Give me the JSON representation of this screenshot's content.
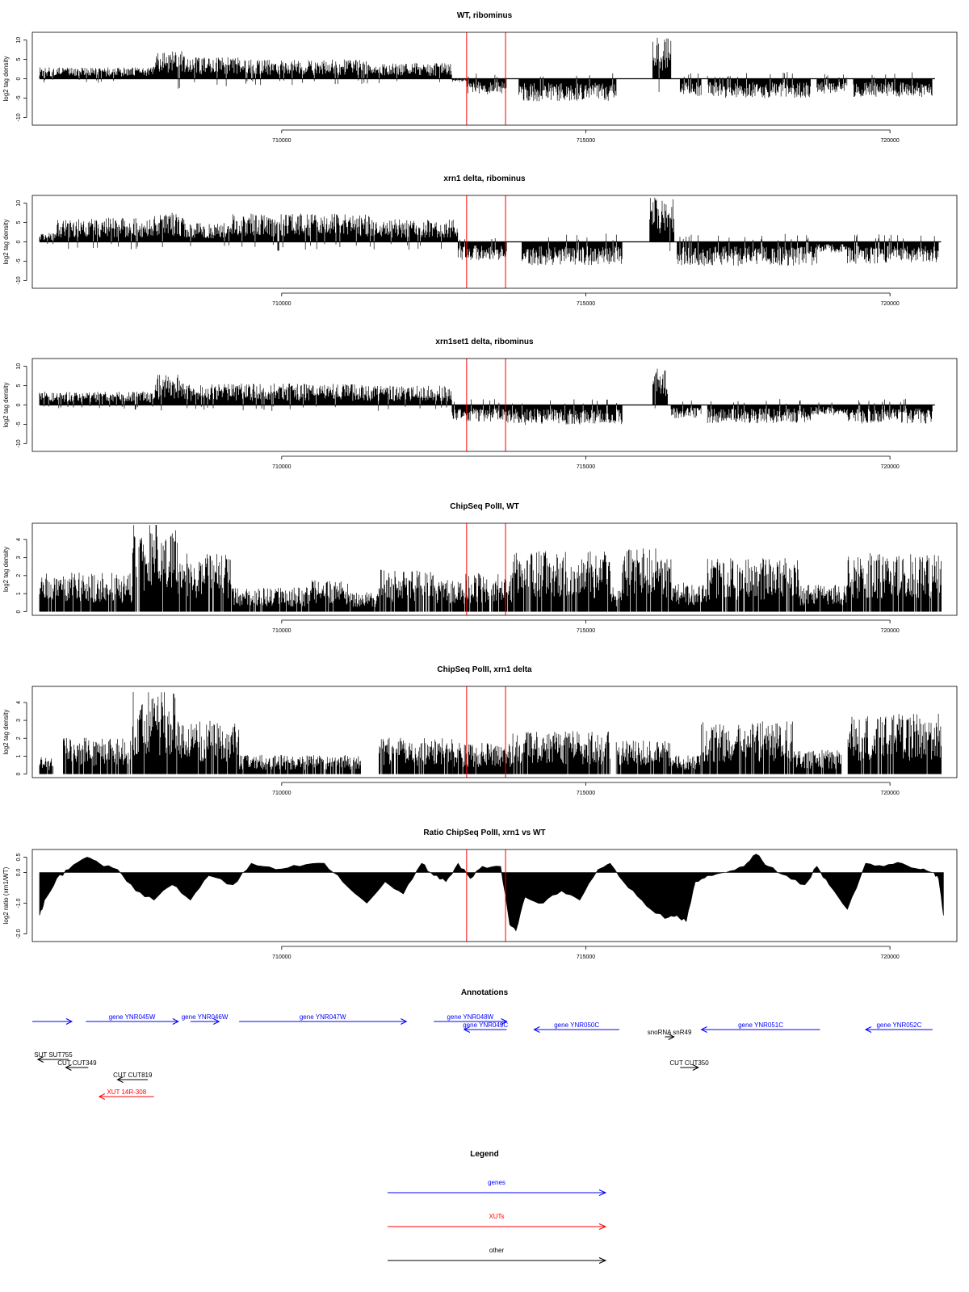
{
  "chart_data": [
    {
      "type": "bar",
      "kind": "signed",
      "title": "WT, ribominus",
      "ylabel": "log2 tag density",
      "ylim": [
        -12,
        12
      ],
      "yticks": [
        -10,
        -5,
        0,
        5,
        10
      ],
      "xlim": [
        705900,
        721100
      ],
      "xticks": [
        710000,
        715000,
        720000
      ],
      "markers": [
        713040,
        713680
      ],
      "segments": [
        {
          "x0": 706020,
          "x1": 707900,
          "v": 2.2
        },
        {
          "x0": 707900,
          "x1": 708400,
          "v": 5.4
        },
        {
          "x0": 708400,
          "x1": 709300,
          "v": 4.2
        },
        {
          "x0": 709300,
          "x1": 711400,
          "v": 3.7
        },
        {
          "x0": 711400,
          "x1": 712800,
          "v": 3.0
        },
        {
          "x0": 712800,
          "x1": 713050,
          "v": -0.6
        },
        {
          "x0": 713050,
          "x1": 713700,
          "v": -3.0
        },
        {
          "x0": 713900,
          "x1": 715500,
          "v": -4.3
        },
        {
          "x0": 716100,
          "x1": 716400,
          "v": 8.0
        },
        {
          "x0": 716550,
          "x1": 716900,
          "v": -3.4
        },
        {
          "x0": 717000,
          "x1": 718700,
          "v": -3.7
        },
        {
          "x0": 718800,
          "x1": 719300,
          "v": -2.8
        },
        {
          "x0": 719400,
          "x1": 720700,
          "v": -3.5
        }
      ]
    },
    {
      "type": "bar",
      "kind": "signed",
      "title": "xrn1 delta, ribominus",
      "ylabel": "log2 tag density",
      "ylim": [
        -12,
        12
      ],
      "yticks": [
        -10,
        -5,
        0,
        5,
        10
      ],
      "xlim": [
        705900,
        721100
      ],
      "xticks": [
        710000,
        715000,
        720000
      ],
      "markers": [
        713040,
        713680
      ],
      "segments": [
        {
          "x0": 706020,
          "x1": 706300,
          "v": 1.8
        },
        {
          "x0": 706300,
          "x1": 707900,
          "v": 4.6
        },
        {
          "x0": 707900,
          "x1": 708400,
          "v": 5.8
        },
        {
          "x0": 708400,
          "x1": 709200,
          "v": 3.6
        },
        {
          "x0": 709200,
          "x1": 711500,
          "v": 5.4
        },
        {
          "x0": 711500,
          "x1": 712900,
          "v": 4.3
        },
        {
          "x0": 712900,
          "x1": 713100,
          "v": -3.4
        },
        {
          "x0": 713100,
          "x1": 713700,
          "v": -3.6
        },
        {
          "x0": 713950,
          "x1": 715600,
          "v": -4.5
        },
        {
          "x0": 716050,
          "x1": 716450,
          "v": 8.5
        },
        {
          "x0": 716500,
          "x1": 718800,
          "v": -4.6
        },
        {
          "x0": 718800,
          "x1": 719300,
          "v": -2.0
        },
        {
          "x0": 719300,
          "x1": 720800,
          "v": -4.2
        }
      ]
    },
    {
      "type": "bar",
      "kind": "signed",
      "title": "xrn1set1 delta, ribominus",
      "ylabel": "log2 tag density",
      "ylim": [
        -12,
        12
      ],
      "yticks": [
        -10,
        -5,
        0,
        5,
        10
      ],
      "xlim": [
        705900,
        721100
      ],
      "xticks": [
        710000,
        715000,
        720000
      ],
      "markers": [
        713040,
        713680
      ],
      "segments": [
        {
          "x0": 706020,
          "x1": 707900,
          "v": 2.6
        },
        {
          "x0": 707900,
          "x1": 708400,
          "v": 5.8
        },
        {
          "x0": 708400,
          "x1": 711400,
          "v": 4.1
        },
        {
          "x0": 711400,
          "x1": 712800,
          "v": 3.7
        },
        {
          "x0": 712800,
          "x1": 713700,
          "v": -3.2
        },
        {
          "x0": 713700,
          "x1": 715600,
          "v": -3.8
        },
        {
          "x0": 716100,
          "x1": 716350,
          "v": 7.0
        },
        {
          "x0": 716400,
          "x1": 716900,
          "v": -2.6
        },
        {
          "x0": 717000,
          "x1": 718700,
          "v": -3.5
        },
        {
          "x0": 718700,
          "x1": 719300,
          "v": -2.0
        },
        {
          "x0": 719300,
          "x1": 720700,
          "v": -3.6
        }
      ]
    },
    {
      "type": "bar",
      "kind": "positive",
      "title": "ChipSeq PolII, WT",
      "ylabel": "log2 tag density",
      "ylim": [
        -0.2,
        4.9
      ],
      "yticks": [
        0,
        1,
        2,
        3,
        4
      ],
      "xlim": [
        705900,
        721100
      ],
      "xticks": [
        710000,
        715000,
        720000
      ],
      "markers": [
        713040,
        713680
      ],
      "segments": [
        {
          "x0": 706020,
          "x1": 707550,
          "v": 1.6
        },
        {
          "x0": 707550,
          "x1": 708300,
          "v": 3.7
        },
        {
          "x0": 708300,
          "x1": 709200,
          "v": 2.4
        },
        {
          "x0": 709200,
          "x1": 710500,
          "v": 1.0
        },
        {
          "x0": 710500,
          "x1": 711100,
          "v": 1.3
        },
        {
          "x0": 711100,
          "x1": 711600,
          "v": 0.8
        },
        {
          "x0": 711600,
          "x1": 712500,
          "v": 1.8
        },
        {
          "x0": 712500,
          "x1": 713000,
          "v": 1.3
        },
        {
          "x0": 713000,
          "x1": 713800,
          "v": 1.6
        },
        {
          "x0": 713800,
          "x1": 715400,
          "v": 2.5
        },
        {
          "x0": 715400,
          "x1": 715600,
          "v": 1.0
        },
        {
          "x0": 715600,
          "x1": 716400,
          "v": 2.6
        },
        {
          "x0": 716400,
          "x1": 717000,
          "v": 1.2
        },
        {
          "x0": 717000,
          "x1": 718500,
          "v": 2.2
        },
        {
          "x0": 718500,
          "x1": 719300,
          "v": 1.1
        },
        {
          "x0": 719300,
          "x1": 720850,
          "v": 2.4
        }
      ]
    },
    {
      "type": "bar",
      "kind": "positive",
      "title": "ChipSeq PolII, xrn1 delta",
      "ylabel": "log2 tag density",
      "ylim": [
        -0.2,
        4.9
      ],
      "yticks": [
        0,
        1,
        2,
        3,
        4
      ],
      "xlim": [
        705900,
        721100
      ],
      "xticks": [
        710000,
        715000,
        720000
      ],
      "markers": [
        713040,
        713680
      ],
      "segments": [
        {
          "x0": 706020,
          "x1": 706250,
          "v": 0.7
        },
        {
          "x0": 706400,
          "x1": 707550,
          "v": 1.5
        },
        {
          "x0": 707550,
          "x1": 708300,
          "v": 3.4
        },
        {
          "x0": 708300,
          "x1": 709300,
          "v": 2.2
        },
        {
          "x0": 709300,
          "x1": 711300,
          "v": 0.8
        },
        {
          "x0": 711600,
          "x1": 712800,
          "v": 1.5
        },
        {
          "x0": 712800,
          "x1": 713800,
          "v": 1.3
        },
        {
          "x0": 713800,
          "x1": 715400,
          "v": 1.8
        },
        {
          "x0": 715500,
          "x1": 716400,
          "v": 1.4
        },
        {
          "x0": 716400,
          "x1": 716900,
          "v": 0.8
        },
        {
          "x0": 716900,
          "x1": 718400,
          "v": 2.2
        },
        {
          "x0": 718400,
          "x1": 719200,
          "v": 1.0
        },
        {
          "x0": 719300,
          "x1": 720850,
          "v": 2.5
        }
      ]
    },
    {
      "type": "area",
      "kind": "profile",
      "title": "Ratio ChipSeq PolII, xrn1 vs WT",
      "ylabel": "log2 ratio (xrn1/WT)",
      "ylim": [
        -2.25,
        0.75
      ],
      "yticks": [
        -2.0,
        -1.0,
        0.0,
        0.5
      ],
      "xlim": [
        705900,
        721100
      ],
      "xticks": [
        710000,
        715000,
        720000
      ],
      "markers": [
        713040,
        713680
      ],
      "x": [
        706020,
        706100,
        706300,
        706500,
        706800,
        707000,
        707300,
        707600,
        707900,
        708200,
        708500,
        708800,
        709200,
        709500,
        709900,
        710300,
        710700,
        711000,
        711400,
        711700,
        712000,
        712300,
        712500,
        712700,
        712900,
        713100,
        713300,
        713600,
        713750,
        713850,
        714000,
        714300,
        714600,
        714900,
        715200,
        715400,
        715700,
        716000,
        716300,
        716500,
        716650,
        716800,
        717000,
        717300,
        717600,
        717800,
        718000,
        718300,
        718600,
        718800,
        719000,
        719300,
        719600,
        719900,
        720200,
        720500,
        720700,
        720800,
        720880
      ],
      "values": [
        -1.4,
        -0.9,
        -0.2,
        0.1,
        0.5,
        0.3,
        0.1,
        -0.6,
        -0.9,
        -0.4,
        -0.9,
        -0.1,
        -0.4,
        0.3,
        0.1,
        0.2,
        0.3,
        -0.3,
        -1.0,
        -0.3,
        -0.7,
        0.3,
        -0.1,
        -0.3,
        0.3,
        -0.2,
        0.2,
        0.2,
        -1.7,
        -1.9,
        -0.8,
        -1.0,
        -0.6,
        -0.9,
        0.1,
        0.3,
        -0.5,
        -1.1,
        -1.5,
        -1.4,
        -1.6,
        -0.3,
        -0.1,
        0.0,
        0.2,
        0.6,
        0.2,
        -0.1,
        -0.4,
        0.2,
        -0.4,
        -1.2,
        0.3,
        0.2,
        0.3,
        0.1,
        0.0,
        -0.2,
        -1.4
      ]
    }
  ],
  "annotations": {
    "title": "Annotations",
    "xlim": [
      705900,
      721100
    ],
    "items": [
      {
        "label": "",
        "color": "#0000ff",
        "x0": 705900,
        "x1": 706550,
        "row": 0,
        "dir": "right"
      },
      {
        "label": "gene YNR045W",
        "color": "#0000ff",
        "x0": 706780,
        "x1": 708300,
        "row": 0,
        "dir": "right"
      },
      {
        "label": "gene YNR046W",
        "color": "#0000ff",
        "x0": 708500,
        "x1": 708970,
        "row": 0,
        "dir": "right"
      },
      {
        "label": "gene YNR047W",
        "color": "#0000ff",
        "x0": 709300,
        "x1": 712050,
        "row": 0,
        "dir": "right"
      },
      {
        "label": "gene YNR048W",
        "color": "#0000ff",
        "x0": 712500,
        "x1": 713700,
        "row": 0,
        "dir": "right"
      },
      {
        "label": "gene YNR049C",
        "color": "#0000ff",
        "x0": 713000,
        "x1": 713700,
        "row": 1,
        "dir": "left"
      },
      {
        "label": "gene YNR050C",
        "color": "#0000ff",
        "x0": 714150,
        "x1": 715550,
        "row": 1,
        "dir": "left"
      },
      {
        "label": "gene YNR051C",
        "color": "#0000ff",
        "x0": 716900,
        "x1": 718850,
        "row": 1,
        "dir": "left"
      },
      {
        "label": "gene YNR052C",
        "color": "#0000ff",
        "x0": 719600,
        "x1": 720700,
        "row": 1,
        "dir": "left"
      },
      {
        "label": "snoRNA snR49",
        "color": "#000000",
        "x0": 716300,
        "x1": 716450,
        "row": 2,
        "dir": "right"
      },
      {
        "label": "SUT SUT755",
        "color": "#000000",
        "x0": 705990,
        "x1": 706500,
        "row": 4,
        "dir": "left"
      },
      {
        "label": "CUT CUT349",
        "color": "#000000",
        "x0": 706450,
        "x1": 706820,
        "row": 5,
        "dir": "left"
      },
      {
        "label": "CUT CUT350",
        "color": "#000000",
        "x0": 716550,
        "x1": 716850,
        "row": 5,
        "dir": "right"
      },
      {
        "label": "CUT CUT819",
        "color": "#000000",
        "x0": 707300,
        "x1": 707800,
        "row": 6,
        "dir": "left"
      },
      {
        "label": "XUT 14R-308",
        "color": "#ff0000",
        "x0": 707000,
        "x1": 707900,
        "row": 7,
        "dir": "left"
      }
    ]
  },
  "legend": {
    "title": "Legend",
    "items": [
      {
        "label": "genes",
        "color": "#0000ff"
      },
      {
        "label": "XUTs",
        "color": "#ff0000"
      },
      {
        "label": "other",
        "color": "#000000"
      }
    ]
  }
}
